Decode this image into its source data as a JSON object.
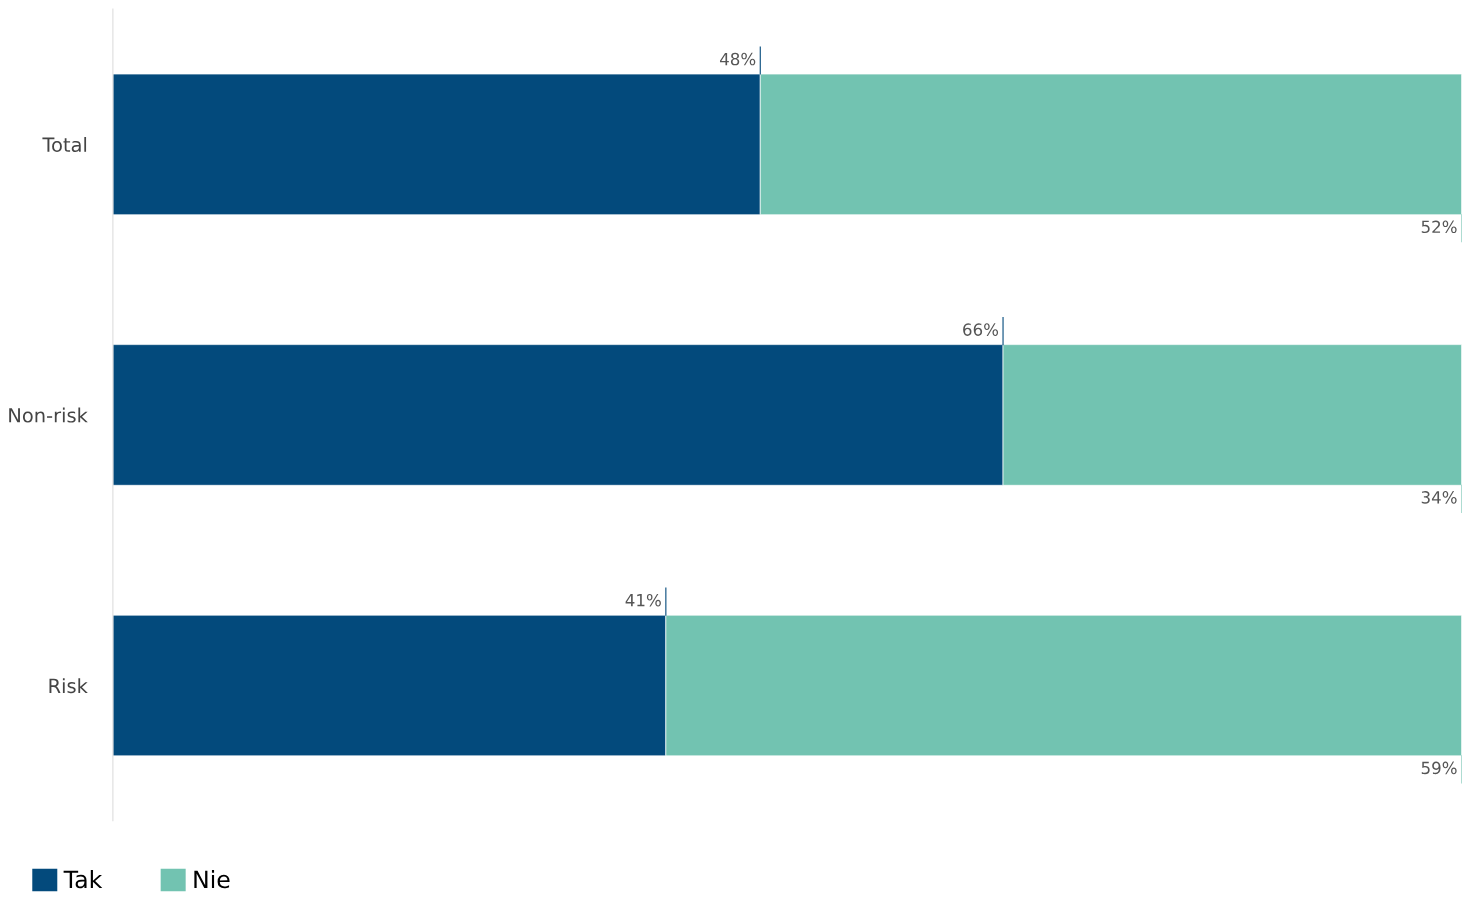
{
  "chart_data": {
    "type": "bar",
    "orientation": "horizontal",
    "stacked": true,
    "categories": [
      "Total",
      "Non-risk",
      "Risk"
    ],
    "series": [
      {
        "name": "Tak",
        "color": "#034a7c",
        "values": [
          48,
          66,
          41
        ],
        "value_labels": [
          "48%",
          "66%",
          "41%"
        ]
      },
      {
        "name": "Nie",
        "color": "#72c3b1",
        "values": [
          52,
          34,
          59
        ],
        "value_labels": [
          "52%",
          "34%",
          "59%"
        ]
      }
    ],
    "legend": "bottom left",
    "grid": false
  }
}
